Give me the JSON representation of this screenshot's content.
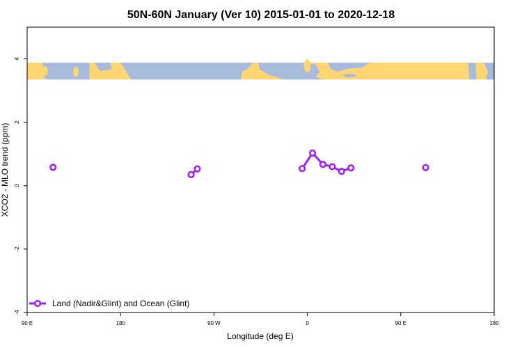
{
  "chart_data": {
    "type": "line",
    "title": "50N-60N January (Ver 10)   2015-01-01 to 2020-12-18",
    "xlabel": "Longitude (deg E)",
    "ylabel": "XCO2 - MLO trend (ppm)",
    "xlim": [
      90,
      540
    ],
    "ylim": [
      -4,
      5
    ],
    "x_ticks": [
      {
        "value": 90,
        "label": "90 E"
      },
      {
        "value": 180,
        "label": "180"
      },
      {
        "value": 270,
        "label": "90 W"
      },
      {
        "value": 360,
        "label": "0"
      },
      {
        "value": 450,
        "label": "90 E"
      },
      {
        "value": 540,
        "label": "180"
      }
    ],
    "y_ticks": [
      {
        "value": -4,
        "label": "-4"
      },
      {
        "value": -2,
        "label": "-2"
      },
      {
        "value": 0,
        "label": "0"
      },
      {
        "value": 2,
        "label": "2"
      },
      {
        "value": 4,
        "label": "4"
      }
    ],
    "series": [
      {
        "name": "Land (Nadir&Glint) and Ocean (Glint)",
        "color": "#a020f0",
        "points": [
          {
            "x": 115,
            "y": 0.58
          },
          {
            "x": 248,
            "y": 0.35
          },
          {
            "x": 254,
            "y": 0.53
          },
          {
            "x": 355,
            "y": 0.54
          },
          {
            "x": 365,
            "y": 1.03
          },
          {
            "x": 375,
            "y": 0.67
          },
          {
            "x": 384,
            "y": 0.6
          },
          {
            "x": 393,
            "y": 0.45
          },
          {
            "x": 402,
            "y": 0.56
          },
          {
            "x": 474,
            "y": 0.57
          }
        ]
      }
    ],
    "map_strip": {
      "y_range": [
        3.35,
        3.88
      ],
      "land_color": "#ffd672",
      "ocean_color": "#a8bbdc"
    },
    "legend_position": "bottom-left",
    "grid": false
  }
}
